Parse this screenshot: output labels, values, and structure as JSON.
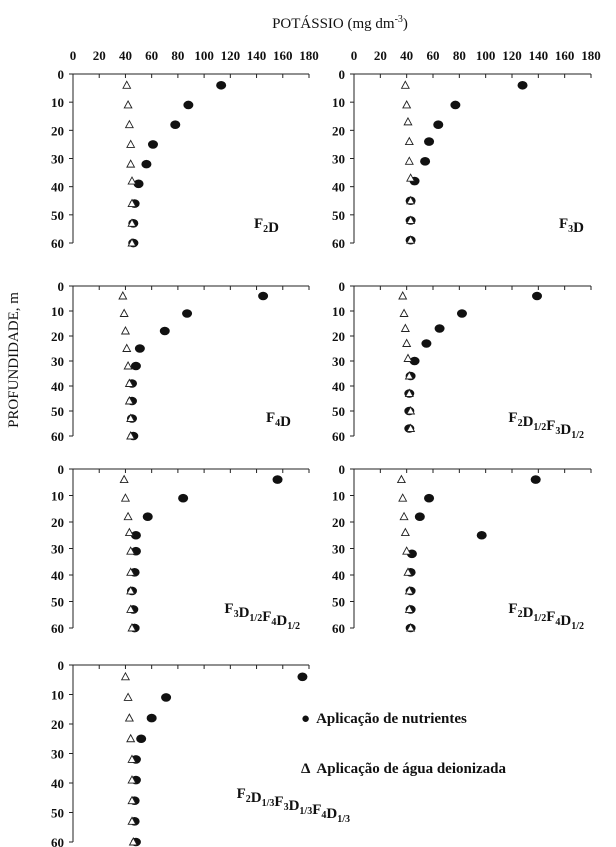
{
  "figure": {
    "title": "POTÁSSIO (mg dm",
    "title_sup": "-3",
    "title_end": ")",
    "ylabel": "PROFUNDIDADE, m",
    "legend": {
      "nutrients": "Aplicação de nutrientes",
      "water": "Aplicação de água deionizada",
      "nutrients_symbol": "●",
      "water_symbol": "Δ"
    }
  },
  "chart_data": [
    {
      "type": "scatter",
      "label_parts": [
        {
          "t": "F"
        },
        {
          "t": "2",
          "sub": true
        },
        {
          "t": "D"
        }
      ],
      "xlim": [
        0,
        180
      ],
      "ylim": [
        0,
        60
      ],
      "xticks": [
        0,
        20,
        40,
        60,
        80,
        100,
        120,
        140,
        160,
        180
      ],
      "yticks": [
        0,
        10,
        20,
        30,
        40,
        50,
        60
      ],
      "yinverted": true,
      "series": [
        {
          "symbol": "filled-circle",
          "x": [
            113,
            88,
            78,
            61,
            56,
            50,
            47,
            46,
            46,
            46
          ],
          "y": [
            4,
            11,
            18,
            25,
            32,
            39,
            46,
            53,
            60,
            60
          ]
        },
        {
          "symbol": "open-triangle",
          "x": [
            41,
            42,
            43,
            44,
            44,
            45,
            45,
            45,
            45
          ],
          "y": [
            4,
            11,
            18,
            25,
            32,
            38,
            46,
            53,
            60
          ]
        }
      ]
    },
    {
      "type": "scatter",
      "label_parts": [
        {
          "t": "F"
        },
        {
          "t": "3",
          "sub": true
        },
        {
          "t": "D"
        }
      ],
      "xlim": [
        0,
        180
      ],
      "ylim": [
        0,
        60
      ],
      "xticks": [
        0,
        20,
        40,
        60,
        80,
        100,
        120,
        140,
        160,
        180
      ],
      "yticks": [
        0,
        10,
        20,
        30,
        40,
        50,
        60
      ],
      "yinverted": true,
      "series": [
        {
          "symbol": "filled-circle",
          "x": [
            128,
            77,
            64,
            57,
            54,
            46,
            43,
            43,
            43
          ],
          "y": [
            4,
            11,
            18,
            24,
            31,
            38,
            45,
            52,
            59
          ]
        },
        {
          "symbol": "open-triangle",
          "x": [
            39,
            40,
            41,
            42,
            42,
            43,
            43,
            43,
            43
          ],
          "y": [
            4,
            11,
            17,
            24,
            31,
            37,
            45,
            52,
            59
          ]
        }
      ]
    },
    {
      "type": "scatter",
      "label_parts": [
        {
          "t": "F"
        },
        {
          "t": "4",
          "sub": true
        },
        {
          "t": "D"
        }
      ],
      "xlim": [
        0,
        180
      ],
      "ylim": [
        0,
        60
      ],
      "xticks": [
        0,
        20,
        40,
        60,
        80,
        100,
        120,
        140,
        160,
        180
      ],
      "yticks": [
        0,
        10,
        20,
        30,
        40,
        50,
        60
      ],
      "yinverted": true,
      "series": [
        {
          "symbol": "filled-circle",
          "x": [
            145,
            87,
            70,
            51,
            48,
            45,
            45,
            45,
            46
          ],
          "y": [
            4,
            11,
            18,
            25,
            32,
            39,
            46,
            53,
            60
          ]
        },
        {
          "symbol": "open-triangle",
          "x": [
            38,
            39,
            40,
            41,
            42,
            43,
            43,
            44,
            44
          ],
          "y": [
            4,
            11,
            18,
            25,
            32,
            39,
            46,
            53,
            60
          ]
        }
      ]
    },
    {
      "type": "scatter",
      "label_parts": [
        {
          "t": "F"
        },
        {
          "t": "2",
          "sub": true
        },
        {
          "t": "D"
        },
        {
          "t": "1/2",
          "sub": true
        },
        {
          "t": "F"
        },
        {
          "t": "3",
          "sub": true
        },
        {
          "t": "D"
        },
        {
          "t": "1/2",
          "sub": true
        }
      ],
      "xlim": [
        0,
        180
      ],
      "ylim": [
        0,
        60
      ],
      "xticks": [
        0,
        20,
        40,
        60,
        80,
        100,
        120,
        140,
        160,
        180
      ],
      "yticks": [
        0,
        10,
        20,
        30,
        40,
        50,
        60
      ],
      "yinverted": true,
      "series": [
        {
          "symbol": "filled-circle",
          "x": [
            139,
            82,
            65,
            55,
            46,
            43,
            42,
            42,
            42
          ],
          "y": [
            4,
            11,
            17,
            23,
            30,
            36,
            43,
            50,
            57
          ]
        },
        {
          "symbol": "open-triangle",
          "x": [
            37,
            38,
            39,
            40,
            41,
            42,
            42,
            43,
            43
          ],
          "y": [
            4,
            11,
            17,
            23,
            29,
            36,
            43,
            50,
            57
          ]
        }
      ]
    },
    {
      "type": "scatter",
      "label_parts": [
        {
          "t": "F"
        },
        {
          "t": "3",
          "sub": true
        },
        {
          "t": "D"
        },
        {
          "t": "1/2",
          "sub": true
        },
        {
          "t": "F"
        },
        {
          "t": "4",
          "sub": true
        },
        {
          "t": "D"
        },
        {
          "t": "1/2",
          "sub": true
        }
      ],
      "xlim": [
        0,
        180
      ],
      "ylim": [
        0,
        60
      ],
      "xticks": [
        0,
        20,
        40,
        60,
        80,
        100,
        120,
        140,
        160,
        180
      ],
      "yticks": [
        0,
        10,
        20,
        30,
        40,
        50,
        60
      ],
      "yinverted": true,
      "series": [
        {
          "symbol": "filled-circle",
          "x": [
            156,
            84,
            57,
            48,
            48,
            47,
            45,
            46,
            47,
            47
          ],
          "y": [
            4,
            11,
            18,
            25,
            31,
            39,
            46,
            53,
            60,
            60
          ]
        },
        {
          "symbol": "open-triangle",
          "x": [
            39,
            40,
            42,
            43,
            44,
            44,
            44,
            44,
            45
          ],
          "y": [
            4,
            11,
            18,
            24,
            31,
            39,
            46,
            53,
            60
          ]
        }
      ]
    },
    {
      "type": "scatter",
      "label_parts": [
        {
          "t": "F"
        },
        {
          "t": "2",
          "sub": true
        },
        {
          "t": "D"
        },
        {
          "t": "1/2",
          "sub": true
        },
        {
          "t": "F"
        },
        {
          "t": "4",
          "sub": true
        },
        {
          "t": "D"
        },
        {
          "t": "1/2",
          "sub": true
        }
      ],
      "xlim": [
        0,
        180
      ],
      "ylim": [
        0,
        60
      ],
      "xticks": [
        0,
        20,
        40,
        60,
        80,
        100,
        120,
        140,
        160,
        180
      ],
      "yticks": [
        0,
        10,
        20,
        30,
        40,
        50,
        60
      ],
      "yinverted": true,
      "series": [
        {
          "symbol": "filled-circle",
          "x": [
            138,
            57,
            50,
            97,
            44,
            43,
            43,
            43,
            43
          ],
          "y": [
            4,
            11,
            18,
            25,
            32,
            39,
            46,
            53,
            60
          ]
        },
        {
          "symbol": "open-triangle",
          "x": [
            36,
            37,
            38,
            39,
            40,
            41,
            42,
            42,
            43
          ],
          "y": [
            4,
            11,
            18,
            24,
            31,
            39,
            46,
            53,
            60
          ]
        }
      ]
    },
    {
      "type": "scatter",
      "label_parts": [
        {
          "t": "F"
        },
        {
          "t": "2",
          "sub": true
        },
        {
          "t": "D"
        },
        {
          "t": "1/3",
          "sub": true
        },
        {
          "t": "F"
        },
        {
          "t": "3",
          "sub": true
        },
        {
          "t": "D"
        },
        {
          "t": "1/3",
          "sub": true
        },
        {
          "t": "F"
        },
        {
          "t": "4",
          "sub": true
        },
        {
          "t": "D"
        },
        {
          "t": "1/3",
          "sub": true
        }
      ],
      "xlim": [
        0,
        180
      ],
      "ylim": [
        0,
        60
      ],
      "xticks": [
        0,
        20,
        40,
        60,
        80,
        100,
        120,
        140,
        160,
        180
      ],
      "yticks": [
        0,
        10,
        20,
        30,
        40,
        50,
        60
      ],
      "yinverted": true,
      "series": [
        {
          "symbol": "filled-circle",
          "x": [
            175,
            71,
            60,
            52,
            48,
            48,
            47,
            47,
            48
          ],
          "y": [
            4,
            11,
            18,
            25,
            32,
            39,
            46,
            53,
            60
          ]
        },
        {
          "symbol": "open-triangle",
          "x": [
            40,
            42,
            43,
            44,
            45,
            45,
            45,
            45,
            46
          ],
          "y": [
            4,
            11,
            18,
            25,
            32,
            39,
            46,
            53,
            60
          ]
        }
      ]
    }
  ]
}
